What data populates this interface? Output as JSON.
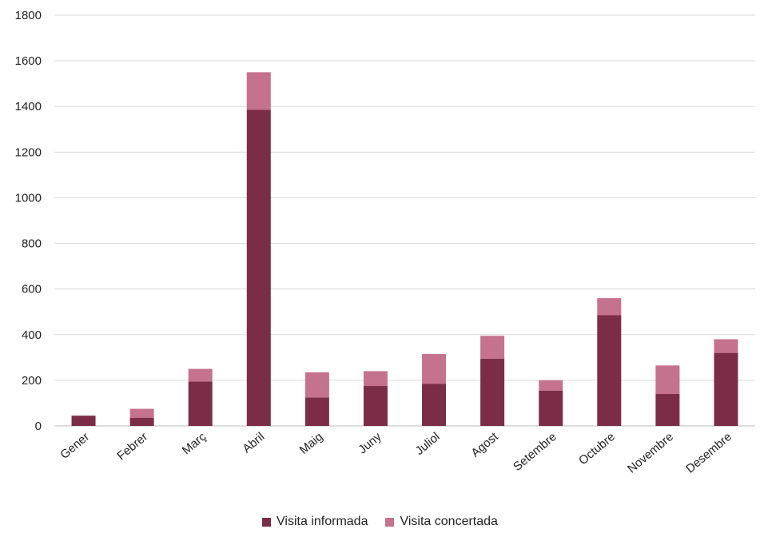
{
  "chart_data": {
    "type": "bar",
    "stacked": true,
    "categories": [
      "Gener",
      "Febrer",
      "Març",
      "Abril",
      "Maig",
      "Juny",
      "Juliol",
      "Agost",
      "Setembre",
      "Octubre",
      "Novembre",
      "Desembre"
    ],
    "series": [
      {
        "name": "Visita informada",
        "color": "#7b2d47",
        "values": [
          45,
          35,
          195,
          1385,
          125,
          175,
          185,
          295,
          155,
          485,
          140,
          320
        ]
      },
      {
        "name": "Visita concertada",
        "color": "#c5728e",
        "values": [
          0,
          40,
          55,
          165,
          110,
          65,
          130,
          100,
          45,
          75,
          125,
          60
        ]
      }
    ],
    "ylim": [
      0,
      1800
    ],
    "yticks": [
      0,
      200,
      400,
      600,
      800,
      1000,
      1200,
      1400,
      1600,
      1800
    ],
    "grid": true,
    "legend_position": "bottom"
  }
}
